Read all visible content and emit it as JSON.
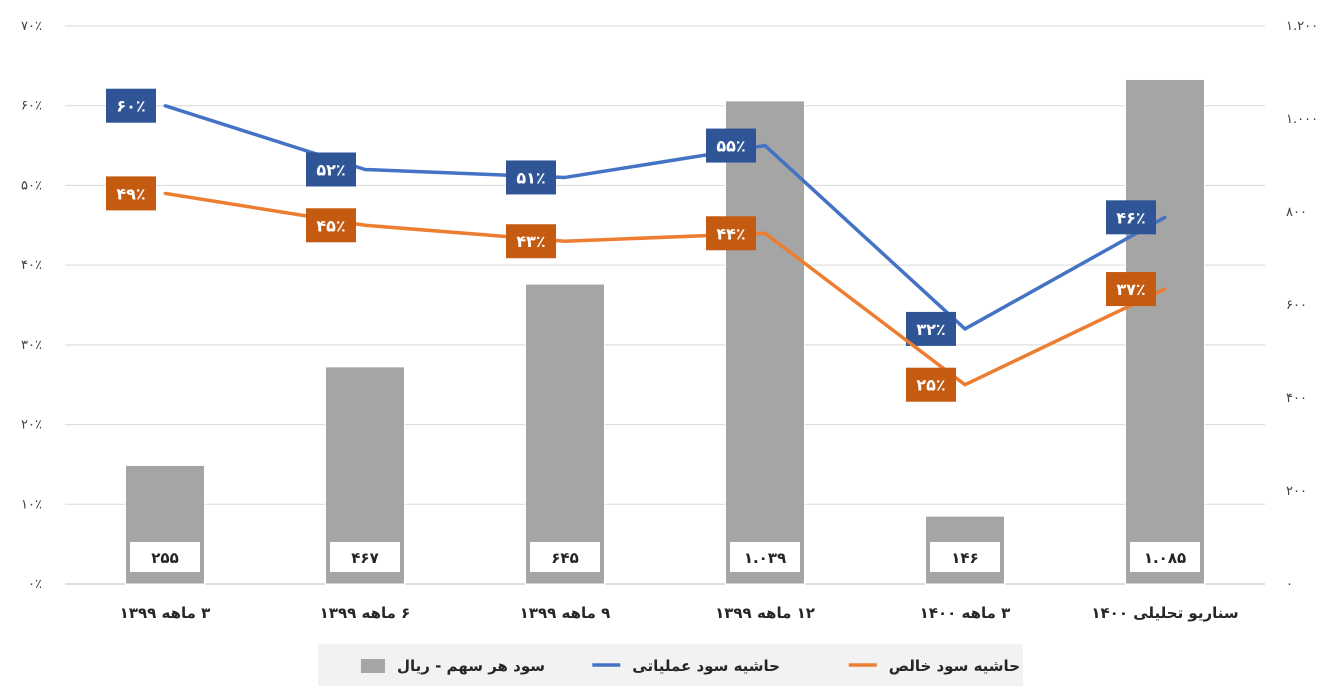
{
  "chart_data": {
    "type": "bar",
    "title": "",
    "categories": [
      "۳ ماهه ۱۳۹۹",
      "۶ ماهه ۱۳۹۹",
      "۹ ماهه ۱۳۹۹",
      "۱۲ ماهه ۱۳۹۹",
      "۳ ماهه ۱۴۰۰",
      "سناریو تحلیلی ۱۴۰۰"
    ],
    "series": [
      {
        "name": "سود هر سهم - ریال",
        "kind": "bar",
        "axis": "right",
        "values": [
          255,
          467,
          645,
          1039,
          146,
          1085
        ],
        "labels": [
          "۲۵۵",
          "۴۶۷",
          "۶۴۵",
          "۱.۰۳۹",
          "۱۴۶",
          "۱.۰۸۵"
        ],
        "color": "#a5a5a5"
      },
      {
        "name": "حاشیه سود عملیاتی",
        "kind": "line",
        "axis": "left",
        "values": [
          60,
          52,
          51,
          55,
          32,
          46
        ],
        "labels": [
          "۶۰٪",
          "۵۲٪",
          "۵۱٪",
          "۵۵٪",
          "۳۲٪",
          "۴۶٪"
        ],
        "color": "#4472c4",
        "label_color": "#2f5597"
      },
      {
        "name": "حاشیه سود خالص",
        "kind": "line",
        "axis": "left",
        "values": [
          49,
          45,
          43,
          44,
          25,
          37
        ],
        "labels": [
          "۴۹٪",
          "۴۵٪",
          "۴۳٪",
          "۴۴٪",
          "۲۵٪",
          "۳۷٪"
        ],
        "color": "#ed7d31",
        "label_color": "#c55a11"
      }
    ],
    "left_axis": {
      "ylim": [
        0,
        70
      ],
      "ticks": [
        0,
        10,
        20,
        30,
        40,
        50,
        60,
        70
      ],
      "tick_labels": [
        "۰٪",
        "۱۰٪",
        "۲۰٪",
        "۳۰٪",
        "۴۰٪",
        "۵۰٪",
        "۶۰٪",
        "۷۰٪"
      ]
    },
    "right_axis": {
      "ylim": [
        0,
        1200
      ],
      "ticks": [
        0,
        200,
        400,
        600,
        800,
        1000,
        1200
      ],
      "tick_labels": [
        "۰",
        "۲۰۰",
        "۴۰۰",
        "۶۰۰",
        "۸۰۰",
        "۱.۰۰۰",
        "۱.۲۰۰"
      ]
    },
    "grid": true,
    "legend": "bottom",
    "legend_order": [
      2,
      1,
      0
    ]
  }
}
